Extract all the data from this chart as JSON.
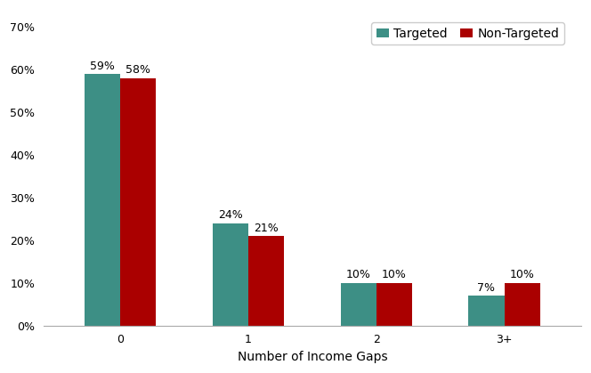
{
  "categories": [
    "0",
    "1",
    "2",
    "3+"
  ],
  "targeted": [
    0.59,
    0.24,
    0.1,
    0.07
  ],
  "non_targeted": [
    0.58,
    0.21,
    0.1,
    0.1
  ],
  "targeted_labels": [
    "59%",
    "24%",
    "10%",
    "7%"
  ],
  "non_targeted_labels": [
    "58%",
    "21%",
    "10%",
    "10%"
  ],
  "targeted_color": "#3d8f85",
  "non_targeted_color": "#aa0000",
  "xlabel": "Number of Income Gaps",
  "ylabel": "",
  "yticks": [
    0.0,
    0.1,
    0.2,
    0.3,
    0.4,
    0.5,
    0.6,
    0.7
  ],
  "ytick_labels": [
    "0%",
    "10%",
    "20%",
    "30%",
    "40%",
    "50%",
    "60%",
    "70%"
  ],
  "ylim": [
    0,
    0.74
  ],
  "legend_labels": [
    "Targeted",
    "Non-Targeted"
  ],
  "bar_width": 0.28,
  "label_fontsize": 9,
  "axis_fontsize": 10,
  "tick_fontsize": 9,
  "legend_fontsize": 10
}
